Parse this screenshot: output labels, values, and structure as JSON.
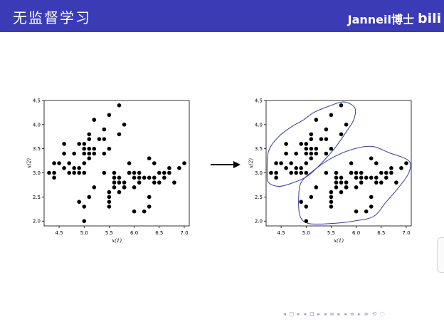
{
  "slide": {
    "title": "无监督学习",
    "author": "Janneil博士",
    "logo_text": "bili",
    "nav_text": "◂ ◻ ▸ ◂ ⊡ ▸ ◂ ≡ ▸ ◂ ≡ ▸ ≡ ⟲ ◌"
  },
  "colors": {
    "header_bg": "#3b3bb5",
    "points": "#000000",
    "cluster_outline": "#3a3aa0"
  },
  "icons": [
    "bilibili-logo-icon",
    "arrow-right-icon"
  ],
  "chart_data": [
    {
      "type": "scatter",
      "title": "",
      "xlabel": "x(1)",
      "ylabel": "x(2)",
      "xlim": [
        4.2,
        7.1
      ],
      "ylim": [
        1.9,
        4.5
      ],
      "xticks": [
        "4.5",
        "5.0",
        "5.5",
        "6.0",
        "6.5",
        "7.0"
      ],
      "yticks": [
        "2.0",
        "2.5",
        "3.0",
        "3.5",
        "4.0",
        "4.5"
      ],
      "series": [
        {
          "x": [
            4.3,
            4.4,
            4.4,
            4.4,
            4.5,
            4.6,
            4.6,
            4.6,
            4.7,
            4.7,
            4.8,
            4.8,
            4.8,
            4.9,
            4.9,
            4.9,
            5.0,
            5.0,
            5.0,
            5.0,
            5.0,
            5.1,
            5.1,
            5.1,
            5.1,
            5.1,
            5.2,
            5.2,
            5.2,
            5.3,
            5.4,
            5.4,
            5.4,
            5.5,
            5.5,
            5.7,
            5.7,
            5.8,
            5.8,
            4.9,
            5.0,
            5.0,
            5.1,
            5.2,
            5.4,
            5.5,
            5.5,
            5.5,
            5.5,
            5.6,
            5.6,
            5.6,
            5.6,
            5.7,
            5.7,
            5.7,
            5.8,
            5.8,
            5.8,
            5.9,
            5.9,
            5.9,
            6.0,
            6.0,
            6.0,
            6.0,
            6.1,
            6.1,
            6.1,
            6.2,
            6.2,
            6.3,
            6.3,
            6.3,
            6.3,
            6.4,
            6.4,
            6.4,
            6.5,
            6.5,
            6.6,
            6.6,
            6.7,
            6.7,
            6.8,
            6.9,
            7.0
          ],
          "y": [
            3.0,
            3.0,
            3.2,
            2.9,
            3.2,
            3.1,
            3.4,
            3.6,
            3.2,
            3.0,
            3.0,
            3.4,
            3.1,
            3.1,
            3.6,
            3.0,
            3.0,
            3.2,
            3.4,
            3.5,
            3.6,
            3.3,
            3.5,
            3.7,
            3.8,
            3.4,
            3.4,
            3.5,
            4.1,
            3.7,
            3.9,
            3.4,
            3.7,
            4.2,
            3.5,
            4.4,
            3.8,
            4.0,
            2.7,
            2.4,
            2.3,
            2.0,
            2.5,
            2.7,
            3.0,
            2.3,
            2.4,
            2.5,
            2.6,
            2.9,
            3.0,
            2.7,
            2.8,
            2.8,
            2.9,
            2.6,
            2.7,
            2.7,
            2.8,
            3.0,
            3.2,
            3.0,
            2.2,
            2.9,
            3.0,
            2.7,
            2.8,
            3.0,
            2.9,
            2.2,
            2.9,
            2.3,
            2.5,
            3.3,
            2.9,
            2.9,
            3.2,
            2.8,
            2.8,
            3.0,
            2.9,
            3.0,
            3.1,
            3.0,
            2.8,
            3.1,
            3.2
          ]
        }
      ]
    },
    {
      "type": "scatter",
      "title": "",
      "xlabel": "x(1)",
      "ylabel": "x(2)",
      "xlim": [
        4.2,
        7.1
      ],
      "ylim": [
        1.9,
        4.5
      ],
      "xticks": [
        "4.5",
        "5.0",
        "5.5",
        "6.0",
        "6.5",
        "7.0"
      ],
      "yticks": [
        "2.0",
        "2.5",
        "3.0",
        "3.5",
        "4.0",
        "4.5"
      ],
      "clusters": 2,
      "series": [
        {
          "x": [
            4.3,
            4.4,
            4.4,
            4.4,
            4.5,
            4.6,
            4.6,
            4.6,
            4.7,
            4.7,
            4.8,
            4.8,
            4.8,
            4.9,
            4.9,
            4.9,
            5.0,
            5.0,
            5.0,
            5.0,
            5.0,
            5.1,
            5.1,
            5.1,
            5.1,
            5.1,
            5.2,
            5.2,
            5.2,
            5.3,
            5.4,
            5.4,
            5.4,
            5.5,
            5.5,
            5.7,
            5.7,
            5.8,
            5.8,
            4.9,
            5.0,
            5.0,
            5.1,
            5.2,
            5.4,
            5.5,
            5.5,
            5.5,
            5.5,
            5.6,
            5.6,
            5.6,
            5.6,
            5.7,
            5.7,
            5.7,
            5.8,
            5.8,
            5.8,
            5.9,
            5.9,
            5.9,
            6.0,
            6.0,
            6.0,
            6.0,
            6.1,
            6.1,
            6.1,
            6.2,
            6.2,
            6.3,
            6.3,
            6.3,
            6.3,
            6.4,
            6.4,
            6.4,
            6.5,
            6.5,
            6.6,
            6.6,
            6.7,
            6.7,
            6.8,
            6.9,
            7.0
          ],
          "y": [
            3.0,
            3.0,
            3.2,
            2.9,
            3.2,
            3.1,
            3.4,
            3.6,
            3.2,
            3.0,
            3.0,
            3.4,
            3.1,
            3.1,
            3.6,
            3.0,
            3.0,
            3.2,
            3.4,
            3.5,
            3.6,
            3.3,
            3.5,
            3.7,
            3.8,
            3.4,
            3.4,
            3.5,
            4.1,
            3.7,
            3.9,
            3.4,
            3.7,
            4.2,
            3.5,
            4.4,
            3.8,
            4.0,
            2.7,
            2.4,
            2.3,
            2.0,
            2.5,
            2.7,
            3.0,
            2.3,
            2.4,
            2.5,
            2.6,
            2.9,
            3.0,
            2.7,
            2.8,
            2.8,
            2.9,
            2.6,
            2.7,
            2.7,
            2.8,
            3.0,
            3.2,
            3.0,
            2.2,
            2.9,
            3.0,
            2.7,
            2.8,
            3.0,
            2.9,
            2.2,
            2.9,
            2.3,
            2.5,
            3.3,
            2.9,
            2.9,
            3.2,
            2.8,
            2.8,
            3.0,
            2.9,
            3.0,
            3.1,
            3.0,
            2.8,
            3.1,
            3.2
          ]
        }
      ]
    }
  ]
}
